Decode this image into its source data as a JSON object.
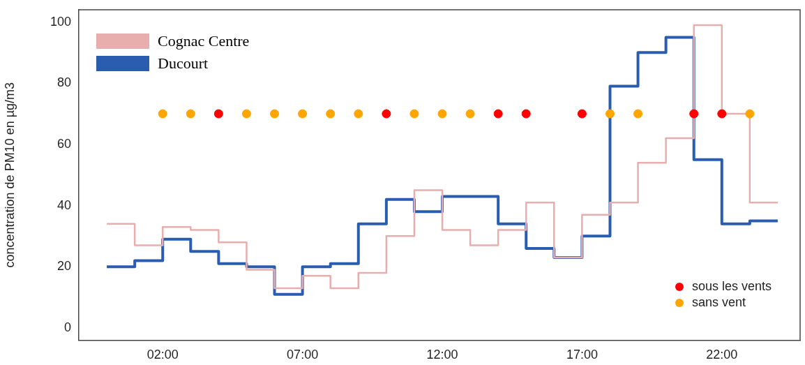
{
  "chart_data": {
    "type": "step",
    "ylabel": "concentration de PM10 en µg/m3",
    "xlim": [
      -1,
      24.8
    ],
    "xticks": [
      {
        "value": 2,
        "label": "02:00"
      },
      {
        "value": 7,
        "label": "07:00"
      },
      {
        "value": 12,
        "label": "12:00"
      },
      {
        "value": 17,
        "label": "17:00"
      },
      {
        "value": 22,
        "label": "22:00"
      }
    ],
    "ylim": [
      -4,
      104
    ],
    "yticks": [
      0,
      20,
      40,
      60,
      80,
      100
    ],
    "grid": false,
    "legend": "top left",
    "x": [
      0,
      1,
      2,
      3,
      4,
      5,
      6,
      7,
      8,
      9,
      10,
      11,
      12,
      13,
      14,
      15,
      16,
      17,
      18,
      19,
      20,
      21,
      22,
      23,
      24
    ],
    "series": [
      {
        "name": "Cognac Centre",
        "color": "#e8aeae",
        "values": [
          34,
          27,
          33,
          32,
          28,
          19,
          13,
          17,
          13,
          18,
          30,
          45,
          32,
          27,
          32,
          41,
          23,
          37,
          41,
          54,
          62,
          99,
          70,
          41,
          41
        ]
      },
      {
        "name": "Ducourt",
        "color": "#2a5db0",
        "values": [
          20,
          22,
          29,
          25,
          21,
          20,
          11,
          20,
          21,
          34,
          42,
          38,
          43,
          43,
          34,
          26,
          23,
          30,
          79,
          90,
          95,
          55,
          34,
          35,
          35
        ]
      },
      {
        "name": "sous les vents",
        "type": "scatter",
        "marker": "circle",
        "color": "#ff0000",
        "x": [
          4,
          10,
          14,
          15,
          17,
          21,
          22
        ],
        "values": [
          70,
          70,
          70,
          70,
          70,
          70,
          70
        ]
      },
      {
        "name": "sans vent",
        "type": "scatter",
        "marker": "circle",
        "color": "#ffa500",
        "x": [
          2,
          3,
          5,
          6,
          7,
          8,
          9,
          11,
          12,
          13,
          18,
          19,
          23
        ],
        "values": [
          70,
          70,
          70,
          70,
          70,
          70,
          70,
          70,
          70,
          70,
          70,
          70,
          70
        ]
      }
    ]
  }
}
